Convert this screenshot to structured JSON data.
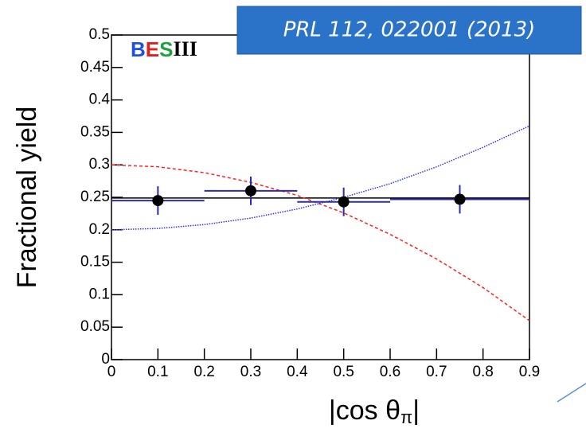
{
  "banner": "PRL 112, 022001 (2013)",
  "logo": [
    "B",
    "E",
    "S",
    "III"
  ],
  "chart_data": {
    "type": "scatter",
    "y_label": "Fractional yield",
    "x_label_parts": [
      "|cos θ",
      "π",
      "|"
    ],
    "xlim": [
      0,
      0.9
    ],
    "ylim": [
      0,
      0.5
    ],
    "xticks": [
      0,
      0.1,
      0.2,
      0.3,
      0.4,
      0.5,
      0.6,
      0.7,
      0.8,
      0.9
    ],
    "yticks": [
      0,
      0.05,
      0.1,
      0.15,
      0.2,
      0.25,
      0.3,
      0.35,
      0.4,
      0.45,
      0.5
    ],
    "points": {
      "x": [
        0.1,
        0.3,
        0.5,
        0.75
      ],
      "values": [
        0.245,
        0.26,
        0.243,
        0.247
      ],
      "x_errors": [
        0.1,
        0.1,
        0.1,
        0.15
      ],
      "y_errors": [
        0.022,
        0.022,
        0.022,
        0.022
      ],
      "color": "#000000",
      "error_color": "#2b2bb0"
    },
    "lines": [
      {
        "x": [
          0,
          0.9
        ],
        "values": [
          0.249,
          0.249
        ],
        "color": "#000000",
        "dash": "none",
        "width": 1.5
      },
      {
        "x": [
          0,
          0.1,
          0.2,
          0.3,
          0.4,
          0.5,
          0.6,
          0.7,
          0.8,
          0.9
        ],
        "values": [
          0.3,
          0.297,
          0.288,
          0.273,
          0.253,
          0.226,
          0.193,
          0.155,
          0.111,
          0.06
        ],
        "color": "#ff2020",
        "dash": "4 3",
        "width": 1.5
      },
      {
        "x": [
          0,
          0.1,
          0.2,
          0.3,
          0.4,
          0.5,
          0.6,
          0.7,
          0.8,
          0.9
        ],
        "values": [
          0.2,
          0.202,
          0.208,
          0.218,
          0.232,
          0.25,
          0.271,
          0.297,
          0.327,
          0.36
        ],
        "color": "#3030ff",
        "dash": "1.5 1.5",
        "width": 1.5
      }
    ]
  }
}
